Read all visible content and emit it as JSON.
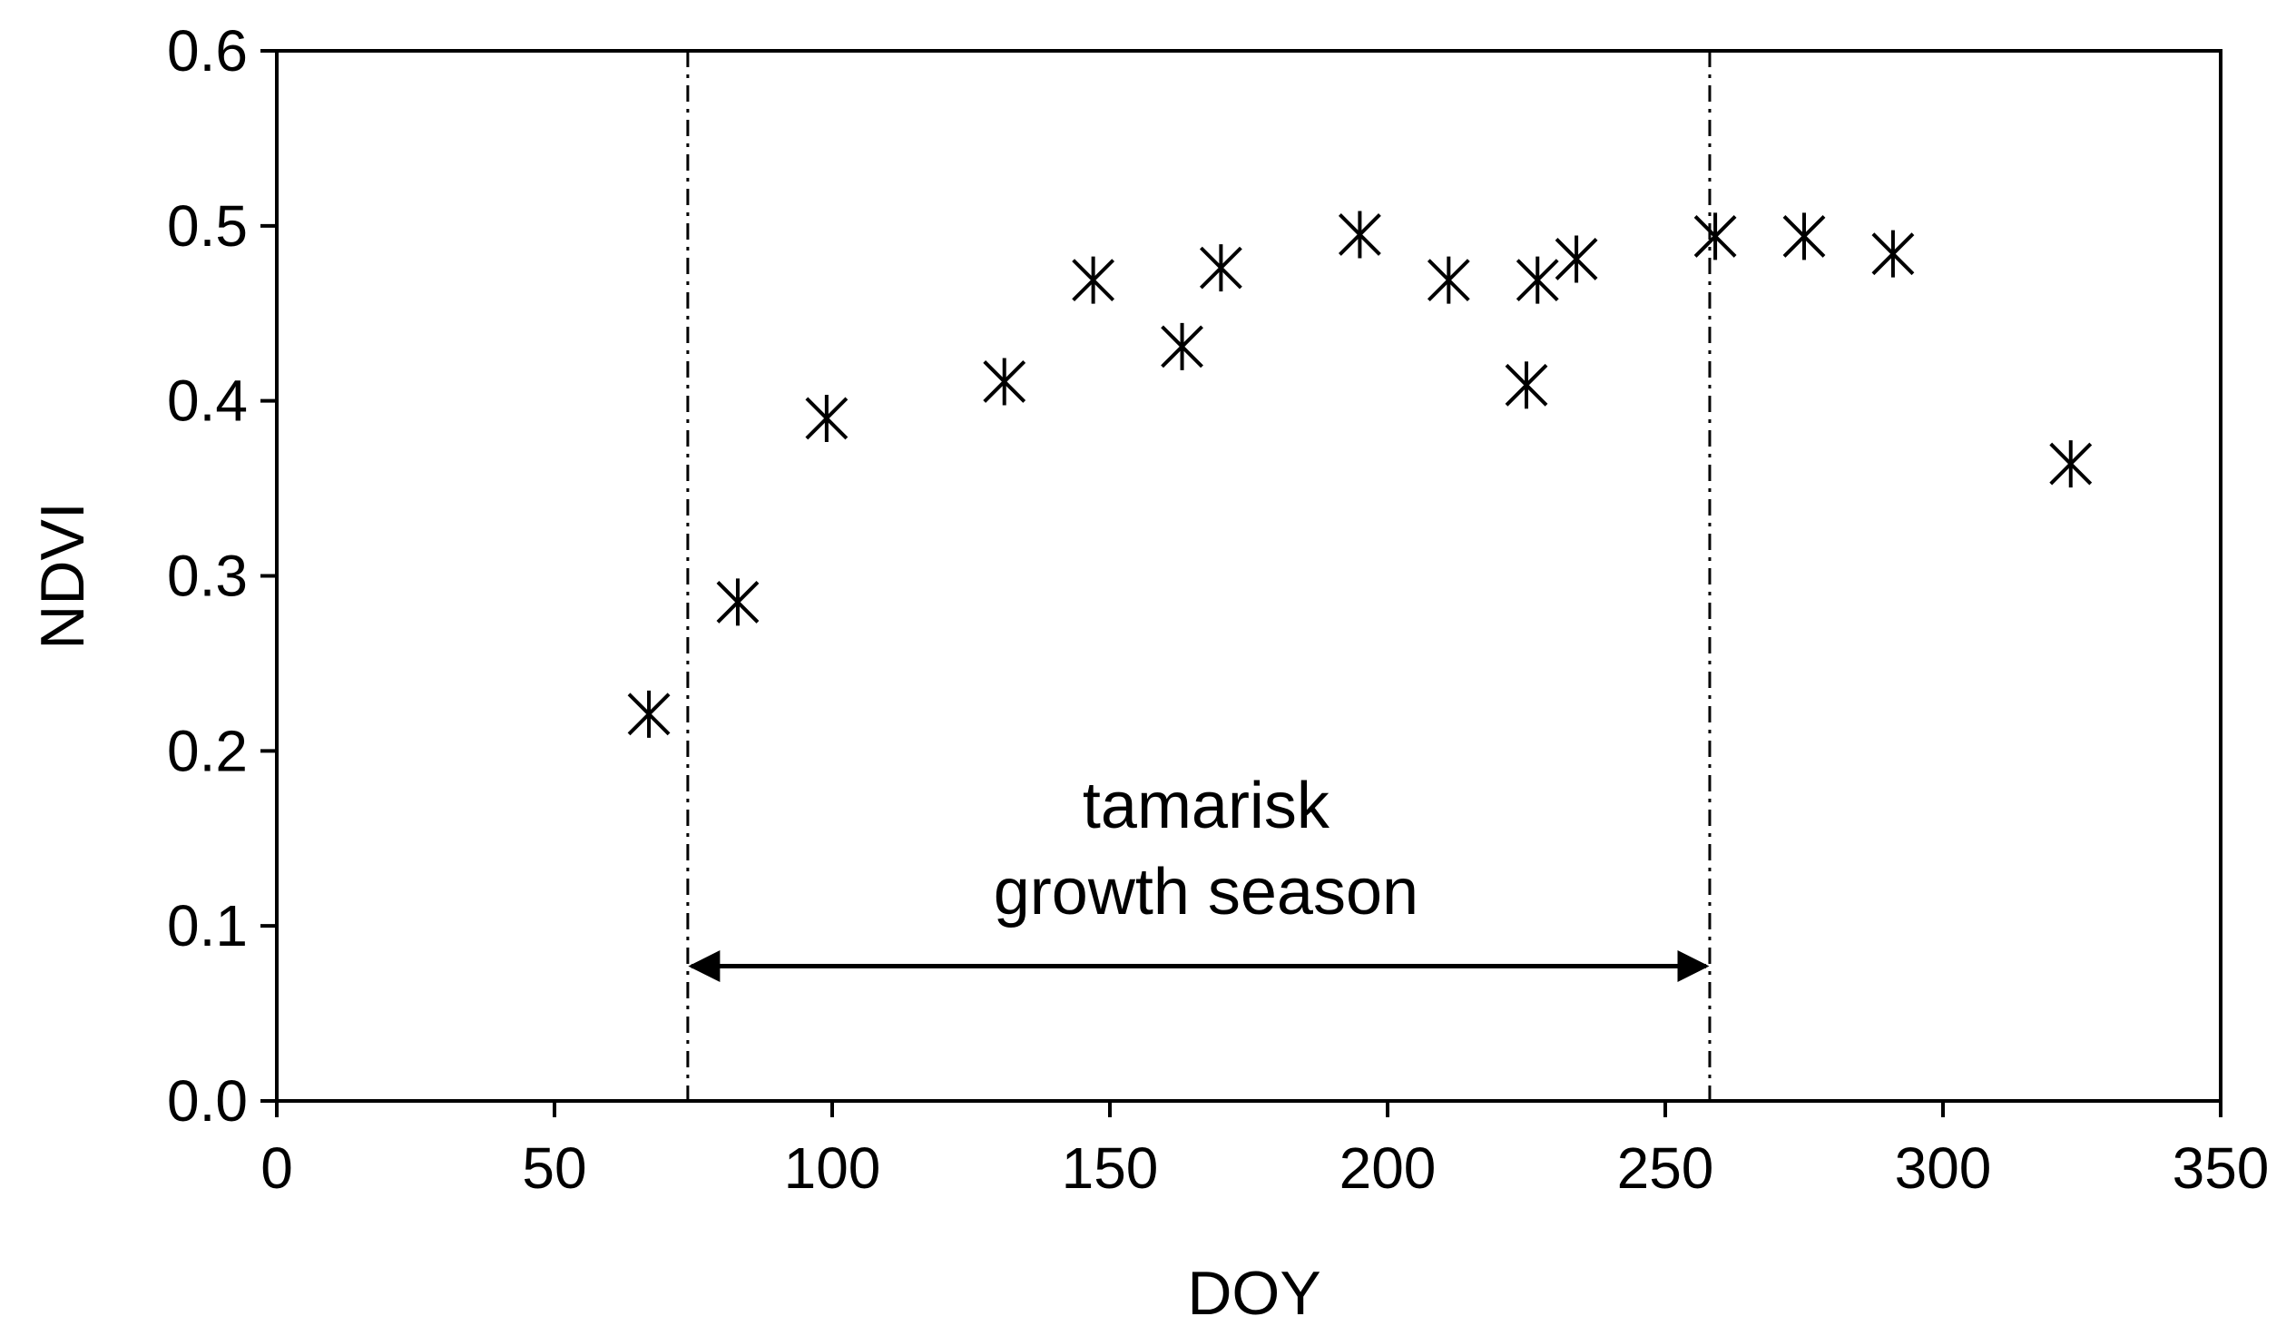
{
  "chart_data": {
    "type": "scatter",
    "xlabel": "DOY",
    "ylabel": "NDVI",
    "xlim": [
      0,
      350
    ],
    "ylim": [
      0,
      0.6
    ],
    "x_ticks": [
      "0",
      "50",
      "100",
      "150",
      "200",
      "250",
      "300",
      "350"
    ],
    "y_ticks": [
      "0.0",
      "0.1",
      "0.2",
      "0.3",
      "0.4",
      "0.5",
      "0.6"
    ],
    "grid": false,
    "marker": "asterisk",
    "series": [
      {
        "points": [
          {
            "x": 67,
            "y": 0.221
          },
          {
            "x": 83,
            "y": 0.285
          },
          {
            "x": 99,
            "y": 0.39
          },
          {
            "x": 131,
            "y": 0.411
          },
          {
            "x": 147,
            "y": 0.469
          },
          {
            "x": 163,
            "y": 0.431
          },
          {
            "x": 170,
            "y": 0.476
          },
          {
            "x": 195,
            "y": 0.495
          },
          {
            "x": 211,
            "y": 0.469
          },
          {
            "x": 225,
            "y": 0.409
          },
          {
            "x": 227,
            "y": 0.469
          },
          {
            "x": 234,
            "y": 0.481
          },
          {
            "x": 259,
            "y": 0.494
          },
          {
            "x": 275,
            "y": 0.494
          },
          {
            "x": 291,
            "y": 0.484
          },
          {
            "x": 323,
            "y": 0.364
          }
        ]
      }
    ],
    "vertical_lines": [
      {
        "x": 74,
        "style": "dash-dot"
      },
      {
        "x": 258,
        "style": "dash-dot"
      }
    ],
    "annotation": {
      "lines": [
        "tamarisk",
        "growth season"
      ],
      "arrow": {
        "x_start": 74,
        "x_end": 258,
        "y": 0.077,
        "heads": "both"
      }
    },
    "colors": {
      "marker": "#000000",
      "axis": "#000000"
    }
  }
}
